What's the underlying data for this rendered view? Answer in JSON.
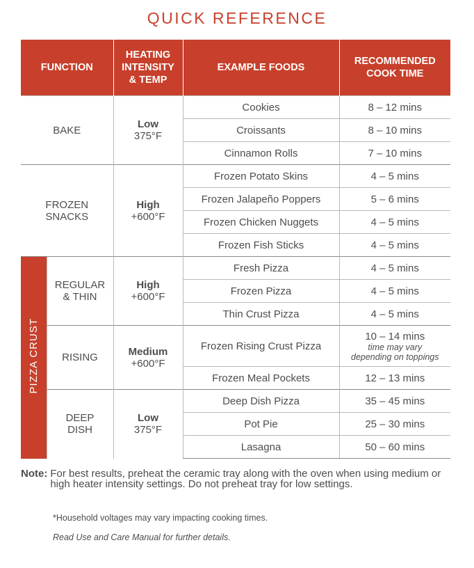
{
  "title": "QUICK REFERENCE",
  "table": {
    "headers": [
      "FUNCTION",
      "HEATING\nINTENSITY\n& TEMP",
      "EXAMPLE FOODS",
      "RECOMMENDED\nCOOK TIME"
    ],
    "sections": [
      {
        "function": "BAKE",
        "intensity": "Low",
        "temp": "375°F",
        "rows": [
          {
            "food": "Cookies",
            "time": "8 – 12 mins"
          },
          {
            "food": "Croissants",
            "time": "8 – 10 mins"
          },
          {
            "food": "Cinnamon Rolls",
            "time": "7 – 10 mins"
          }
        ]
      },
      {
        "function": "FROZEN\nSNACKS",
        "intensity": "High",
        "temp": "+600°F",
        "rows": [
          {
            "food": "Frozen Potato Skins",
            "time": "4 – 5 mins"
          },
          {
            "food": "Frozen Jalapeño Poppers",
            "time": "5 – 6 mins"
          },
          {
            "food": "Frozen Chicken Nuggets",
            "time": "4 – 5 mins"
          },
          {
            "food": "Frozen Fish Sticks",
            "time": "4 – 5 mins"
          }
        ]
      },
      {
        "category": "PIZZA CRUST",
        "subsections": [
          {
            "function": "REGULAR\n& THIN",
            "intensity": "High",
            "temp": "+600°F",
            "rows": [
              {
                "food": "Fresh Pizza",
                "time": "4 – 5 mins"
              },
              {
                "food": "Frozen Pizza",
                "time": "4 – 5 mins"
              },
              {
                "food": "Thin Crust Pizza",
                "time": "4 – 5 mins"
              }
            ]
          },
          {
            "function": "RISING",
            "intensity": "Medium",
            "temp": "+600°F",
            "rows": [
              {
                "food": "Frozen Rising Crust Pizza",
                "time": "10 – 14 mins",
                "note": "time may vary\ndepending on toppings"
              },
              {
                "food": "Frozen Meal Pockets",
                "time": "12 – 13 mins"
              }
            ]
          },
          {
            "function": "DEEP\nDISH",
            "intensity": "Low",
            "temp": "375°F",
            "rows": [
              {
                "food": "Deep Dish Pizza",
                "time": "35 – 45 mins"
              },
              {
                "food": "Pot Pie",
                "time": "25 – 30 mins"
              },
              {
                "food": "Lasagna",
                "time": "50 – 60 mins"
              }
            ]
          }
        ]
      }
    ]
  },
  "note": {
    "label": "Note:",
    "text": "For best results, preheat the ceramic tray along with the oven when using medium or high heater intensity settings. Do not preheat tray for low settings."
  },
  "footnote": "*Household voltages may vary impacting cooking times.",
  "manual": "Read Use and Care Manual for further details."
}
